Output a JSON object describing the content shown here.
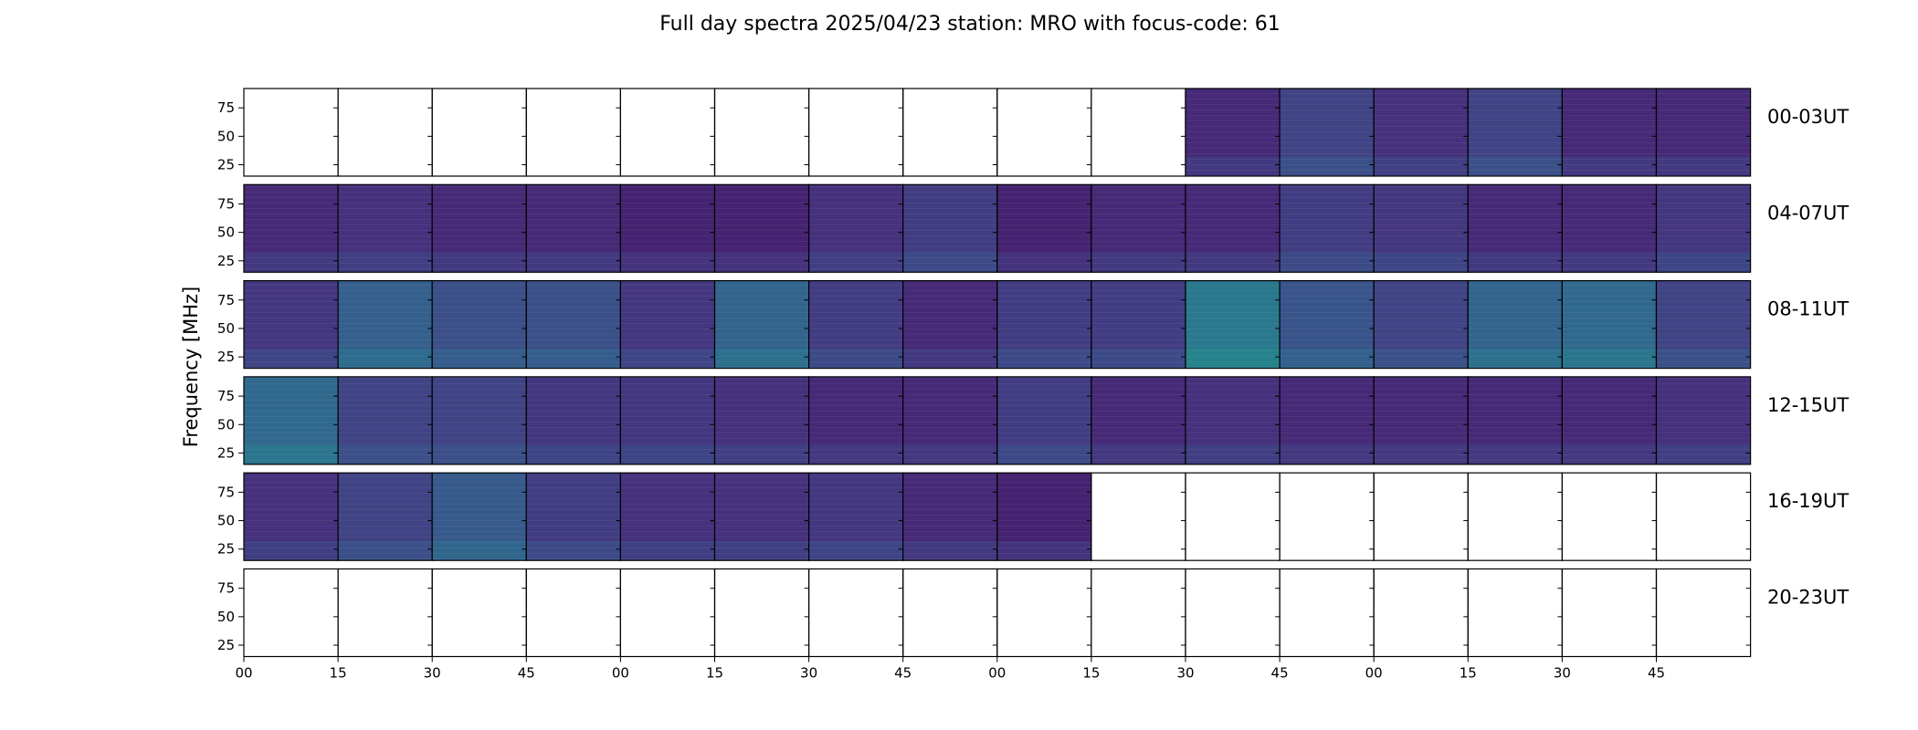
{
  "chart_data": {
    "type": "heatmap",
    "title": "Full day spectra 2025/04/23 station: MRO with focus-code: 61",
    "ylabel": "Frequency [MHz]",
    "xlabel": "",
    "ylim": [
      15,
      92
    ],
    "y_ticks": [
      25,
      50,
      75
    ],
    "x_tick_labels": [
      "00",
      "15",
      "30",
      "45",
      "00",
      "15",
      "30",
      "45",
      "00",
      "15",
      "30",
      "45",
      "00",
      "15",
      "30",
      "45"
    ],
    "grid": false,
    "colormap": "viridis",
    "colormap_stops": [
      "#440154",
      "#46327e",
      "#365c8d",
      "#277f8e",
      "#1fa187",
      "#4ac16d",
      "#a0da39",
      "#fde725"
    ],
    "rows": [
      {
        "label": "00-03UT",
        "panels": [
          {
            "available": false,
            "intensity": 0.0
          },
          {
            "available": false,
            "intensity": 0.0
          },
          {
            "available": false,
            "intensity": 0.0
          },
          {
            "available": false,
            "intensity": 0.0
          },
          {
            "available": false,
            "intensity": 0.0
          },
          {
            "available": false,
            "intensity": 0.0
          },
          {
            "available": false,
            "intensity": 0.0
          },
          {
            "available": false,
            "intensity": 0.0
          },
          {
            "available": false,
            "intensity": 0.0
          },
          {
            "available": false,
            "intensity": 0.0
          },
          {
            "available": true,
            "intensity": 0.12
          },
          {
            "available": true,
            "intensity": 0.2
          },
          {
            "available": true,
            "intensity": 0.14
          },
          {
            "available": true,
            "intensity": 0.2
          },
          {
            "available": true,
            "intensity": 0.12
          },
          {
            "available": true,
            "intensity": 0.12
          }
        ]
      },
      {
        "label": "04-07UT",
        "panels": [
          {
            "available": true,
            "intensity": 0.12
          },
          {
            "available": true,
            "intensity": 0.14
          },
          {
            "available": true,
            "intensity": 0.12
          },
          {
            "available": true,
            "intensity": 0.12
          },
          {
            "available": true,
            "intensity": 0.1
          },
          {
            "available": true,
            "intensity": 0.1
          },
          {
            "available": true,
            "intensity": 0.14
          },
          {
            "available": true,
            "intensity": 0.18
          },
          {
            "available": true,
            "intensity": 0.1
          },
          {
            "available": true,
            "intensity": 0.12
          },
          {
            "available": true,
            "intensity": 0.12
          },
          {
            "available": true,
            "intensity": 0.18
          },
          {
            "available": true,
            "intensity": 0.16
          },
          {
            "available": true,
            "intensity": 0.12
          },
          {
            "available": true,
            "intensity": 0.12
          },
          {
            "available": true,
            "intensity": 0.16
          }
        ]
      },
      {
        "label": "08-11UT",
        "panels": [
          {
            "available": true,
            "intensity": 0.16
          },
          {
            "available": true,
            "intensity": 0.3
          },
          {
            "available": true,
            "intensity": 0.24
          },
          {
            "available": true,
            "intensity": 0.24
          },
          {
            "available": true,
            "intensity": 0.16
          },
          {
            "available": true,
            "intensity": 0.32
          },
          {
            "available": true,
            "intensity": 0.18
          },
          {
            "available": true,
            "intensity": 0.12
          },
          {
            "available": true,
            "intensity": 0.18
          },
          {
            "available": true,
            "intensity": 0.18
          },
          {
            "available": true,
            "intensity": 0.4
          },
          {
            "available": true,
            "intensity": 0.26
          },
          {
            "available": true,
            "intensity": 0.2
          },
          {
            "available": true,
            "intensity": 0.32
          },
          {
            "available": true,
            "intensity": 0.34
          },
          {
            "available": true,
            "intensity": 0.2
          }
        ]
      },
      {
        "label": "12-15UT",
        "panels": [
          {
            "available": true,
            "intensity": 0.34
          },
          {
            "available": true,
            "intensity": 0.2
          },
          {
            "available": true,
            "intensity": 0.2
          },
          {
            "available": true,
            "intensity": 0.16
          },
          {
            "available": true,
            "intensity": 0.16
          },
          {
            "available": true,
            "intensity": 0.14
          },
          {
            "available": true,
            "intensity": 0.12
          },
          {
            "available": true,
            "intensity": 0.12
          },
          {
            "available": true,
            "intensity": 0.18
          },
          {
            "available": true,
            "intensity": 0.12
          },
          {
            "available": true,
            "intensity": 0.14
          },
          {
            "available": true,
            "intensity": 0.12
          },
          {
            "available": true,
            "intensity": 0.12
          },
          {
            "available": true,
            "intensity": 0.12
          },
          {
            "available": true,
            "intensity": 0.12
          },
          {
            "available": true,
            "intensity": 0.14
          }
        ]
      },
      {
        "label": "16-19UT",
        "panels": [
          {
            "available": true,
            "intensity": 0.14
          },
          {
            "available": true,
            "intensity": 0.2
          },
          {
            "available": true,
            "intensity": 0.28
          },
          {
            "available": true,
            "intensity": 0.18
          },
          {
            "available": true,
            "intensity": 0.14
          },
          {
            "available": true,
            "intensity": 0.14
          },
          {
            "available": true,
            "intensity": 0.16
          },
          {
            "available": true,
            "intensity": 0.12
          },
          {
            "available": true,
            "intensity": 0.1
          },
          {
            "available": false,
            "intensity": 0.0
          },
          {
            "available": false,
            "intensity": 0.0
          },
          {
            "available": false,
            "intensity": 0.0
          },
          {
            "available": false,
            "intensity": 0.0
          },
          {
            "available": false,
            "intensity": 0.0
          },
          {
            "available": false,
            "intensity": 0.0
          },
          {
            "available": false,
            "intensity": 0.0
          }
        ]
      },
      {
        "label": "20-23UT",
        "panels": [
          {
            "available": false,
            "intensity": 0.0
          },
          {
            "available": false,
            "intensity": 0.0
          },
          {
            "available": false,
            "intensity": 0.0
          },
          {
            "available": false,
            "intensity": 0.0
          },
          {
            "available": false,
            "intensity": 0.0
          },
          {
            "available": false,
            "intensity": 0.0
          },
          {
            "available": false,
            "intensity": 0.0
          },
          {
            "available": false,
            "intensity": 0.0
          },
          {
            "available": false,
            "intensity": 0.0
          },
          {
            "available": false,
            "intensity": 0.0
          },
          {
            "available": false,
            "intensity": 0.0
          },
          {
            "available": false,
            "intensity": 0.0
          },
          {
            "available": false,
            "intensity": 0.0
          },
          {
            "available": false,
            "intensity": 0.0
          },
          {
            "available": false,
            "intensity": 0.0
          },
          {
            "available": false,
            "intensity": 0.0
          }
        ]
      }
    ]
  }
}
